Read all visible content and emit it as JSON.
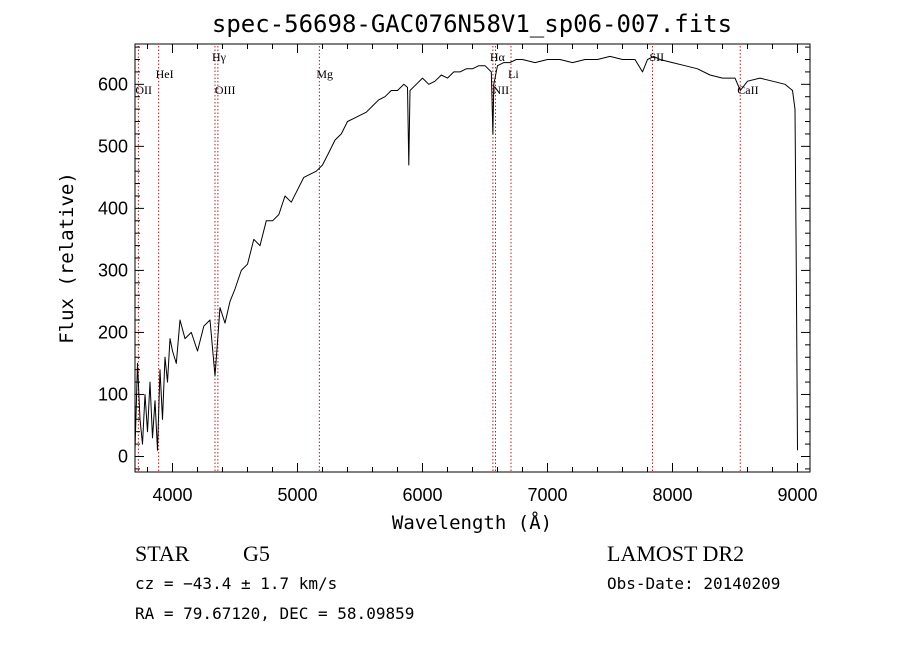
{
  "chart_data": {
    "type": "line",
    "title": "spec-56698-GAC076N58V1_sp06-007.fits",
    "xlabel": "Wavelength (Å)",
    "ylabel": "Flux (relative)",
    "xlim": [
      3700,
      9100
    ],
    "ylim": [
      -25,
      665
    ],
    "xticks": [
      4000,
      5000,
      6000,
      7000,
      8000,
      9000
    ],
    "yticks": [
      0,
      100,
      200,
      300,
      400,
      500,
      600
    ],
    "grid": false,
    "legend": "none",
    "line_color": "#000000",
    "marker_color": "#b22222",
    "series": [
      {
        "x": [
          3700,
          3720,
          3740,
          3760,
          3780,
          3800,
          3820,
          3840,
          3860,
          3880,
          3900,
          3920,
          3940,
          3960,
          3980,
          4000,
          4030,
          4060,
          4100,
          4150,
          4200,
          4250,
          4300,
          4340,
          4380,
          4420,
          4460,
          4500,
          4550,
          4600,
          4650,
          4700,
          4750,
          4800,
          4850,
          4900,
          4950,
          5000,
          5050,
          5100,
          5150,
          5200,
          5250,
          5300,
          5350,
          5400,
          5450,
          5500,
          5550,
          5600,
          5650,
          5700,
          5750,
          5800,
          5850,
          5880,
          5890,
          5900,
          5950,
          6000,
          6050,
          6100,
          6150,
          6200,
          6250,
          6300,
          6350,
          6400,
          6450,
          6500,
          6550,
          6563,
          6570,
          6600,
          6650,
          6700,
          6750,
          6800,
          6900,
          7000,
          7100,
          7200,
          7300,
          7400,
          7500,
          7600,
          7700,
          7760,
          7800,
          7850,
          7900,
          8000,
          8100,
          8200,
          8300,
          8400,
          8500,
          8542,
          8600,
          8700,
          8800,
          8900,
          8960,
          8980,
          8990,
          9000
        ],
        "y": [
          10,
          150,
          60,
          20,
          100,
          40,
          120,
          30,
          90,
          10,
          140,
          60,
          160,
          120,
          190,
          170,
          150,
          220,
          190,
          200,
          170,
          210,
          220,
          130,
          240,
          215,
          250,
          270,
          300,
          310,
          350,
          340,
          380,
          380,
          390,
          420,
          410,
          430,
          450,
          455,
          460,
          470,
          490,
          510,
          520,
          540,
          545,
          550,
          555,
          565,
          575,
          580,
          590,
          590,
          600,
          595,
          470,
          590,
          600,
          610,
          600,
          605,
          615,
          610,
          620,
          620,
          625,
          625,
          630,
          630,
          620,
          520,
          600,
          630,
          635,
          635,
          640,
          640,
          635,
          640,
          640,
          635,
          640,
          640,
          645,
          640,
          640,
          620,
          640,
          645,
          640,
          635,
          630,
          625,
          615,
          610,
          610,
          590,
          605,
          610,
          605,
          600,
          590,
          560,
          300,
          10
        ]
      }
    ],
    "lines": [
      {
        "name": "OII",
        "wavelength": 3727,
        "row": 2
      },
      {
        "name": "HeI",
        "wavelength": 3889,
        "row": 1
      },
      {
        "name": "Hγ",
        "wavelength": 4340,
        "row": 0
      },
      {
        "name": "OIII",
        "wavelength": 4363,
        "row": 2
      },
      {
        "name": "Mg",
        "wavelength": 5175,
        "row": 1
      },
      {
        "name": "Hα",
        "wavelength": 6563,
        "row": 0
      },
      {
        "name": "NII",
        "wavelength": 6584,
        "row": 2
      },
      {
        "name": "Li",
        "wavelength": 6708,
        "row": 1
      },
      {
        "name": "SII",
        "wavelength": 7840,
        "row": 0
      },
      {
        "name": "CaII",
        "wavelength": 8542,
        "row": 2
      }
    ]
  },
  "info": {
    "object_class": "STAR",
    "subclass": "G5",
    "survey": "LAMOST DR2",
    "cz": "cz = −43.4 ± 1.7 km/s",
    "obs_date": "Obs-Date: 20140209",
    "coords": "RA =  79.67120, DEC =  58.09859"
  }
}
